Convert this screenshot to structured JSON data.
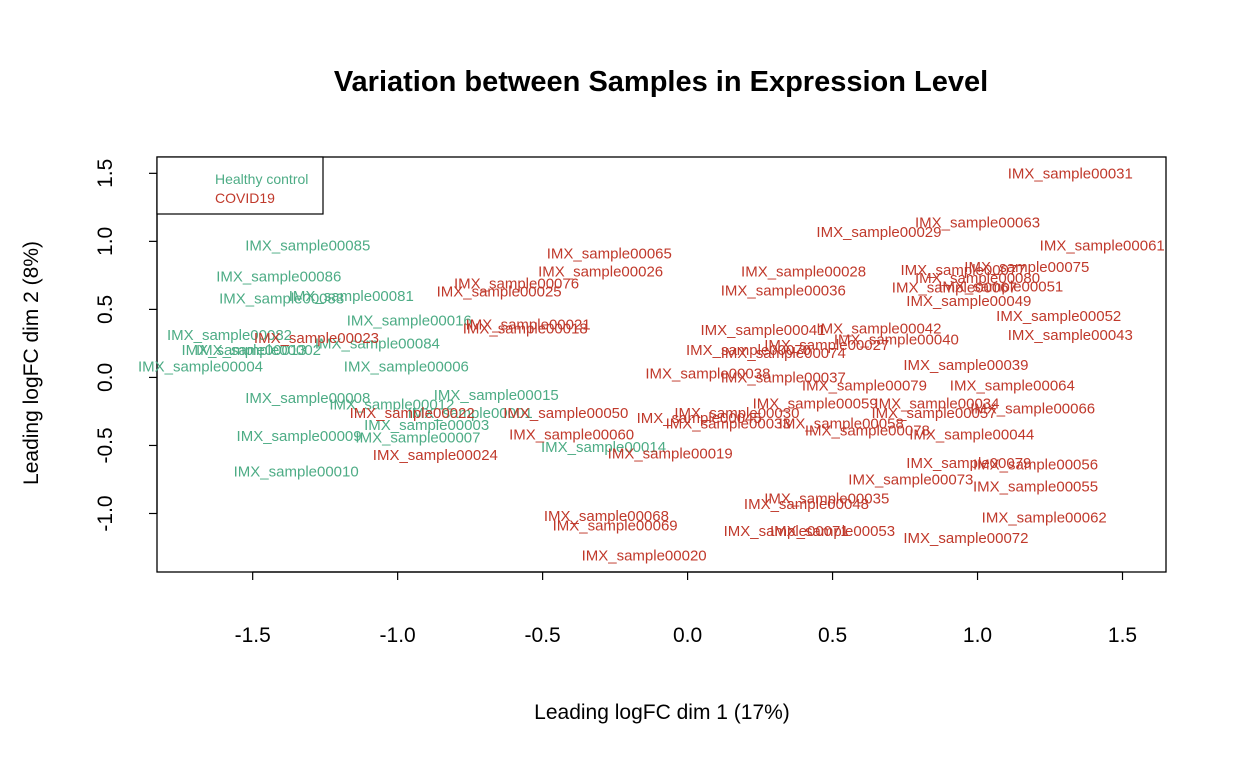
{
  "chart_data": {
    "type": "scatter",
    "title": "Variation between Samples in Expression Level",
    "xlabel": "Leading logFC dim 1 (17%)",
    "ylabel": "Leading logFC dim 2 (8%)",
    "xlim": [
      -1.83,
      1.65
    ],
    "ylim": [
      -1.43,
      1.62
    ],
    "xticks": [
      "-1.5",
      "-1.0",
      "-0.5",
      "0.0",
      "0.5",
      "1.0",
      "1.5"
    ],
    "xtick_values": [
      -1.5,
      -1.0,
      -0.5,
      0.0,
      0.5,
      1.0,
      1.5
    ],
    "yticks": [
      "-1.0",
      "-0.5",
      "0.0",
      "0.5",
      "1.0",
      "1.5"
    ],
    "ytick_values": [
      -1.0,
      -0.5,
      0.0,
      0.5,
      1.0,
      1.5
    ],
    "grid": false,
    "legend_position": "top-left",
    "series": [
      {
        "name": "Healthy control",
        "color": "#4dac85",
        "points": [
          {
            "label": "IMX_sample00085",
            "x": -1.31,
            "y": 0.97
          },
          {
            "label": "IMX_sample00086",
            "x": -1.41,
            "y": 0.74
          },
          {
            "label": "IMX_sample00083",
            "x": -1.4,
            "y": 0.58
          },
          {
            "label": "IMX_sample00081",
            "x": -1.16,
            "y": 0.6
          },
          {
            "label": "IMX_sample00016",
            "x": -0.96,
            "y": 0.42
          },
          {
            "label": "IMX_sample00082",
            "x": -1.58,
            "y": 0.31
          },
          {
            "label": "IMX_sample00084",
            "x": -1.07,
            "y": 0.25
          },
          {
            "label": "IMX_sample00013",
            "x": -1.53,
            "y": 0.2
          },
          {
            "label": "IMX_sample00002",
            "x": -1.48,
            "y": 0.2
          },
          {
            "label": "IMX_sample00004",
            "x": -1.68,
            "y": 0.08
          },
          {
            "label": "IMX_sample00006",
            "x": -0.97,
            "y": 0.08
          },
          {
            "label": "IMX_sample00008",
            "x": -1.31,
            "y": -0.15
          },
          {
            "label": "IMX_sample00012",
            "x": -1.02,
            "y": -0.2
          },
          {
            "label": "IMX_sample00015",
            "x": -0.66,
            "y": -0.13
          },
          {
            "label": "IMX_sample00001",
            "x": -0.75,
            "y": -0.26
          },
          {
            "label": "IMX_sample00003",
            "x": -0.9,
            "y": -0.35
          },
          {
            "label": "IMX_sample00009",
            "x": -1.34,
            "y": -0.43
          },
          {
            "label": "IMX_sample00007",
            "x": -0.93,
            "y": -0.44
          },
          {
            "label": "IMX_sample00014",
            "x": -0.29,
            "y": -0.51
          },
          {
            "label": "IMX_sample00010",
            "x": -1.35,
            "y": -0.69
          }
        ]
      },
      {
        "name": "COVID19",
        "color": "#c0392b",
        "points": [
          {
            "label": "IMX_sample00031",
            "x": 1.32,
            "y": 1.5
          },
          {
            "label": "IMX_sample00063",
            "x": 1.0,
            "y": 1.14
          },
          {
            "label": "IMX_sample00029",
            "x": 0.66,
            "y": 1.07
          },
          {
            "label": "IMX_sample00061",
            "x": 1.43,
            "y": 0.97
          },
          {
            "label": "IMX_sample00065",
            "x": -0.27,
            "y": 0.91
          },
          {
            "label": "IMX_sample00028",
            "x": 0.4,
            "y": 0.78
          },
          {
            "label": "IMX_sample00077",
            "x": 0.95,
            "y": 0.79
          },
          {
            "label": "IMX_sample00075",
            "x": 1.17,
            "y": 0.81
          },
          {
            "label": "IMX_sample00026",
            "x": -0.3,
            "y": 0.78
          },
          {
            "label": "IMX_sample00080",
            "x": 1.0,
            "y": 0.73
          },
          {
            "label": "IMX_sample00076",
            "x": -0.59,
            "y": 0.69
          },
          {
            "label": "IMX_sample00025",
            "x": -0.65,
            "y": 0.63
          },
          {
            "label": "IMX_sample00036",
            "x": 0.33,
            "y": 0.64
          },
          {
            "label": "IMX_sample00067",
            "x": 0.92,
            "y": 0.66
          },
          {
            "label": "IMX_sample00051",
            "x": 1.08,
            "y": 0.67
          },
          {
            "label": "IMX_sample00049",
            "x": 0.97,
            "y": 0.56
          },
          {
            "label": "IMX_sample00052",
            "x": 1.28,
            "y": 0.45
          },
          {
            "label": "IMX_sample00021",
            "x": -0.55,
            "y": 0.39
          },
          {
            "label": "IMX_sample00018",
            "x": -0.56,
            "y": 0.36
          },
          {
            "label": "IMX_sample00041",
            "x": 0.26,
            "y": 0.35
          },
          {
            "label": "IMX_sample00042",
            "x": 0.66,
            "y": 0.36
          },
          {
            "label": "IMX_sample00043",
            "x": 1.32,
            "y": 0.31
          },
          {
            "label": "IMX_sample00023",
            "x": -1.28,
            "y": 0.29
          },
          {
            "label": "IMX_sample00040",
            "x": 0.72,
            "y": 0.28
          },
          {
            "label": "IMX_sample00027",
            "x": 0.48,
            "y": 0.24
          },
          {
            "label": "IMX_sample00070",
            "x": 0.21,
            "y": 0.2
          },
          {
            "label": "IMX_sample00074",
            "x": 0.33,
            "y": 0.18
          },
          {
            "label": "IMX_sample00039",
            "x": 0.96,
            "y": 0.09
          },
          {
            "label": "IMX_sample00038",
            "x": 0.07,
            "y": 0.03
          },
          {
            "label": "IMX_sample00037",
            "x": 0.33,
            "y": 0.0
          },
          {
            "label": "IMX_sample00079",
            "x": 0.61,
            "y": -0.06
          },
          {
            "label": "IMX_sample00064",
            "x": 1.12,
            "y": -0.06
          },
          {
            "label": "IMX_sample00059",
            "x": 0.44,
            "y": -0.19
          },
          {
            "label": "IMX_sample00034",
            "x": 0.86,
            "y": -0.19
          },
          {
            "label": "IMX_sample00066",
            "x": 1.19,
            "y": -0.23
          },
          {
            "label": "IMX_sample00057",
            "x": 0.85,
            "y": -0.26
          },
          {
            "label": "IMX_sample00022",
            "x": -0.95,
            "y": -0.26
          },
          {
            "label": "IMX_sample00050",
            "x": -0.42,
            "y": -0.26
          },
          {
            "label": "IMX_sample00030",
            "x": 0.17,
            "y": -0.26
          },
          {
            "label": "IMX_sample00045",
            "x": 0.04,
            "y": -0.3
          },
          {
            "label": "IMX_sample00033",
            "x": 0.14,
            "y": -0.34
          },
          {
            "label": "IMX_sample00058",
            "x": 0.53,
            "y": -0.34
          },
          {
            "label": "IMX_sample00078",
            "x": 0.62,
            "y": -0.39
          },
          {
            "label": "IMX_sample00060",
            "x": -0.4,
            "y": -0.42
          },
          {
            "label": "IMX_sample00044",
            "x": 0.98,
            "y": -0.42
          },
          {
            "label": "IMX_sample00024",
            "x": -0.87,
            "y": -0.57
          },
          {
            "label": "IMX_sample00019",
            "x": -0.06,
            "y": -0.56
          },
          {
            "label": "IMX_sample00079",
            "x": 0.97,
            "y": -0.63
          },
          {
            "label": "IMX_sample00056",
            "x": 1.2,
            "y": -0.64
          },
          {
            "label": "IMX_sample00073",
            "x": 0.77,
            "y": -0.75
          },
          {
            "label": "IMX_sample00055",
            "x": 1.2,
            "y": -0.8
          },
          {
            "label": "IMX_sample00035",
            "x": 0.48,
            "y": -0.89
          },
          {
            "label": "IMX_sample00048",
            "x": 0.41,
            "y": -0.93
          },
          {
            "label": "IMX_sample00068",
            "x": -0.28,
            "y": -1.02
          },
          {
            "label": "IMX_sample00062",
            "x": 1.23,
            "y": -1.03
          },
          {
            "label": "IMX_sample00069",
            "x": -0.25,
            "y": -1.09
          },
          {
            "label": "IMX_sample00071",
            "x": 0.34,
            "y": -1.13
          },
          {
            "label": "IMX_sample00053",
            "x": 0.5,
            "y": -1.13
          },
          {
            "label": "IMX_sample00072",
            "x": 0.96,
            "y": -1.18
          },
          {
            "label": "IMX_sample00020",
            "x": -0.15,
            "y": -1.31
          }
        ]
      }
    ]
  }
}
